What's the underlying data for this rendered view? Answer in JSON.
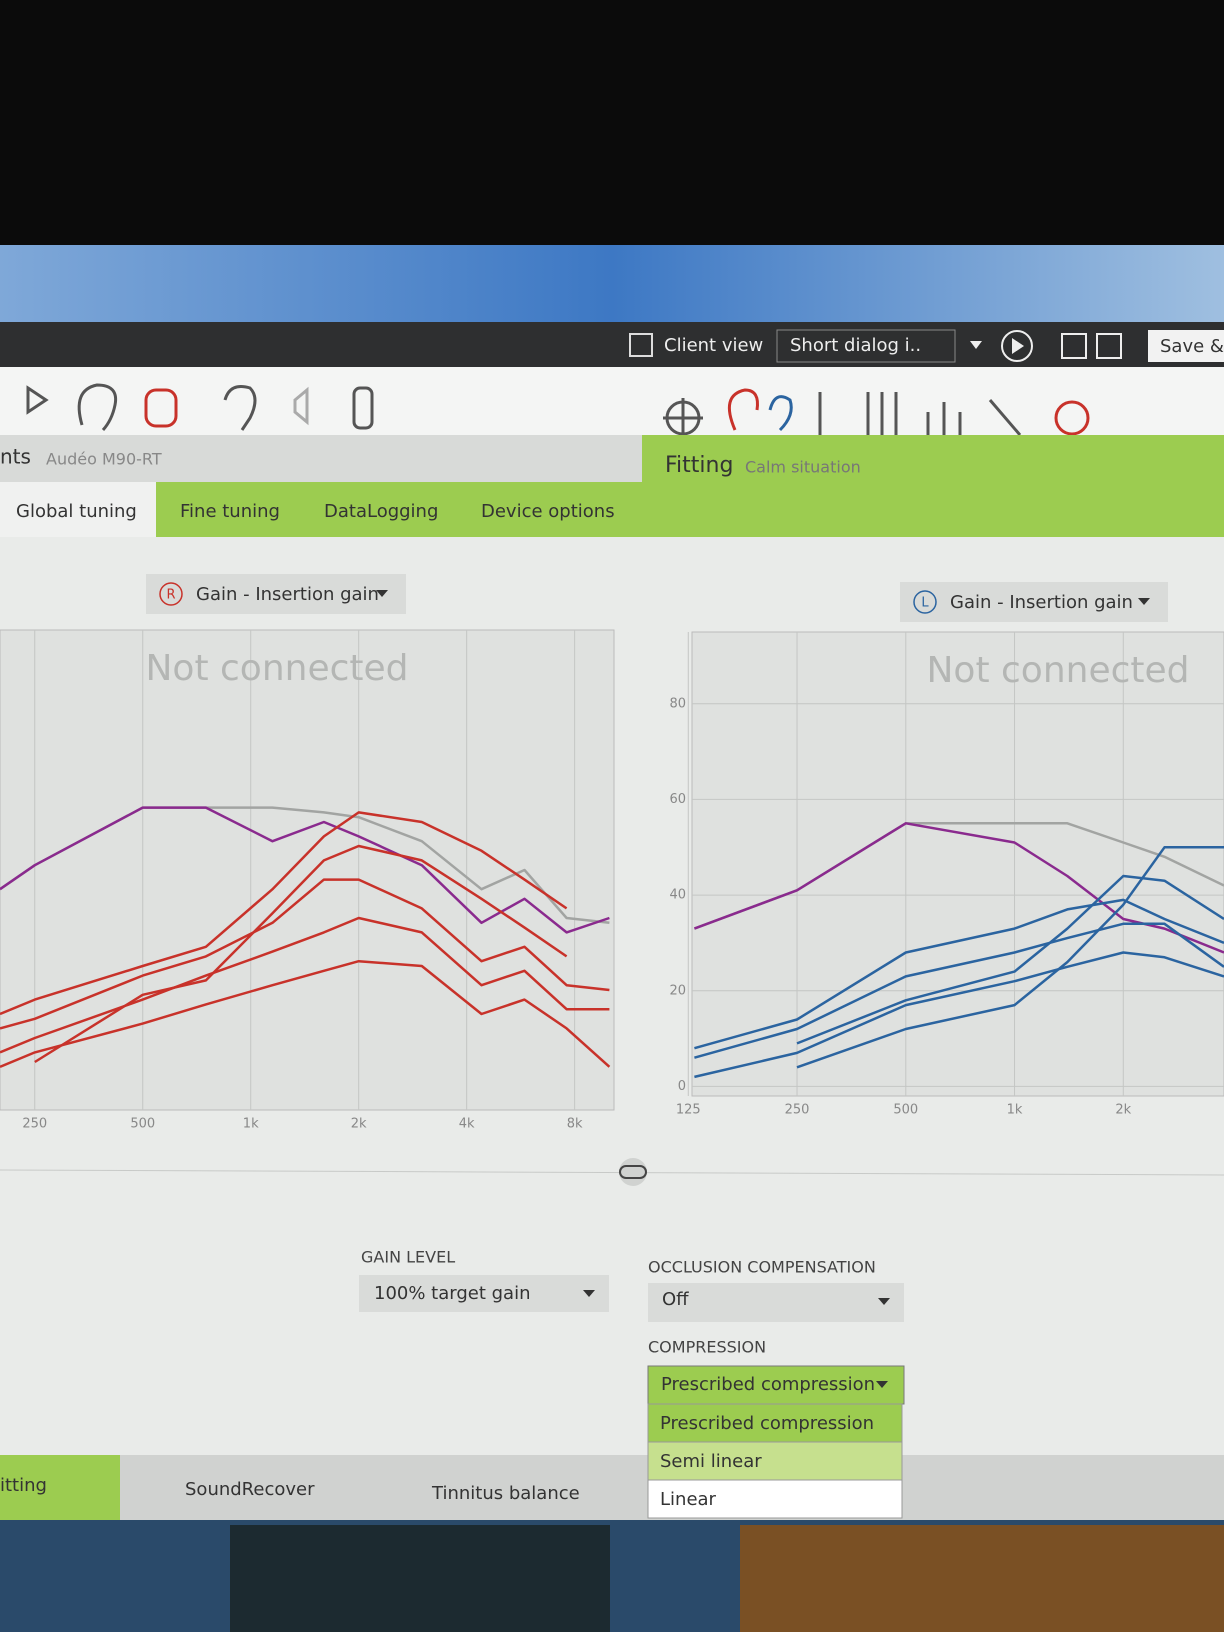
{
  "toolbar": {
    "client_view": "Client view",
    "dialog": "Short dialog i..",
    "save": "Save &"
  },
  "header": {
    "left_fragment": "nts",
    "device": "Audéo M90-RT",
    "mode": "Fitting",
    "situation": "Calm situation"
  },
  "tabs": [
    "Global tuning",
    "Fine tuning",
    "DataLogging",
    "Device options"
  ],
  "charts": [
    {
      "type": "line",
      "side": "R",
      "selector": "Gain - Insertion gain",
      "annotation": "Not connected",
      "log_x": true,
      "grid": true,
      "xlim": [
        200,
        10300
      ],
      "ylim": [
        -4,
        96
      ],
      "xticks": [
        250,
        500,
        {
          "value": 1000,
          "label": "1k"
        },
        {
          "value": 2000,
          "label": "2k"
        },
        {
          "value": 4000,
          "label": "4k"
        },
        {
          "value": 8000,
          "label": "8k"
        }
      ],
      "x": [
        200,
        250,
        500,
        750,
        1150,
        1600,
        2000,
        3000,
        4400,
        5800,
        7600,
        10000
      ],
      "series": [
        {
          "color": "#a2a4a2",
          "values": [
            42,
            47,
            59,
            59,
            59,
            58,
            57,
            52,
            42,
            46,
            36,
            35
          ]
        },
        {
          "color": "#8a2a8e",
          "values": [
            42,
            47,
            59,
            59,
            52,
            56,
            53,
            47,
            35,
            40,
            33,
            36
          ]
        },
        {
          "color": "#c8322a",
          "values": [
            16,
            19,
            26,
            30,
            42,
            53,
            58,
            56,
            50,
            44,
            38,
            null
          ]
        },
        {
          "color": "#c8322a",
          "values": [
            null,
            6,
            20,
            23,
            37,
            48,
            51,
            48,
            40,
            34,
            28,
            null
          ]
        },
        {
          "color": "#c8322a",
          "values": [
            13,
            15,
            24,
            28,
            35,
            44,
            44,
            38,
            27,
            30,
            22,
            21
          ]
        },
        {
          "color": "#c8322a",
          "values": [
            8,
            11,
            19,
            24,
            29,
            33,
            36,
            33,
            22,
            25,
            17,
            17
          ]
        },
        {
          "color": "#c8322a",
          "values": [
            5,
            8,
            14,
            18,
            22,
            25,
            27,
            26,
            16,
            19,
            13,
            5
          ]
        }
      ]
    },
    {
      "type": "line",
      "side": "L",
      "selector": "Gain - Insertion gain",
      "annotation": "Not connected",
      "log_x": true,
      "grid": true,
      "xlim": [
        128,
        3800
      ],
      "ylim": [
        -2,
        95
      ],
      "xticks": [
        125,
        250,
        500,
        {
          "value": 1000,
          "label": "1k"
        },
        {
          "value": 2000,
          "label": "2k"
        }
      ],
      "yticks": [
        0,
        20,
        40,
        60,
        80
      ],
      "x": [
        130,
        250,
        500,
        1000,
        1400,
        2000,
        2600,
        3800
      ],
      "series": [
        {
          "color": "#a2a4a2",
          "values": [
            33,
            41,
            55,
            55,
            55,
            51,
            48,
            42
          ]
        },
        {
          "color": "#8a2a8e",
          "values": [
            33,
            41,
            55,
            51,
            44,
            35,
            33,
            28
          ]
        },
        {
          "color": "#2b64a0",
          "values": [
            null,
            4,
            12,
            17,
            26,
            38,
            50,
            50
          ]
        },
        {
          "color": "#2b64a0",
          "values": [
            null,
            9,
            18,
            24,
            33,
            44,
            43,
            35
          ]
        },
        {
          "color": "#2b64a0",
          "values": [
            8,
            14,
            28,
            33,
            37,
            39,
            35,
            30
          ]
        },
        {
          "color": "#2b64a0",
          "values": [
            6,
            12,
            23,
            28,
            31,
            34,
            34,
            25
          ]
        },
        {
          "color": "#2b64a0",
          "values": [
            2,
            7,
            17,
            22,
            25,
            28,
            27,
            23
          ]
        }
      ]
    }
  ],
  "settings": {
    "gain_label": "GAIN LEVEL",
    "gain_value": "100% target gain",
    "occlusion_label": "OCCLUSION COMPENSATION",
    "occlusion_value": "Off",
    "compression_label": "COMPRESSION",
    "compression_value": "Prescribed compression",
    "compression_options": [
      "Prescribed compression",
      "Semi linear",
      "Linear"
    ]
  },
  "bottom_tabs": [
    "itting",
    "SoundRecover",
    "Tinnitus balance"
  ]
}
